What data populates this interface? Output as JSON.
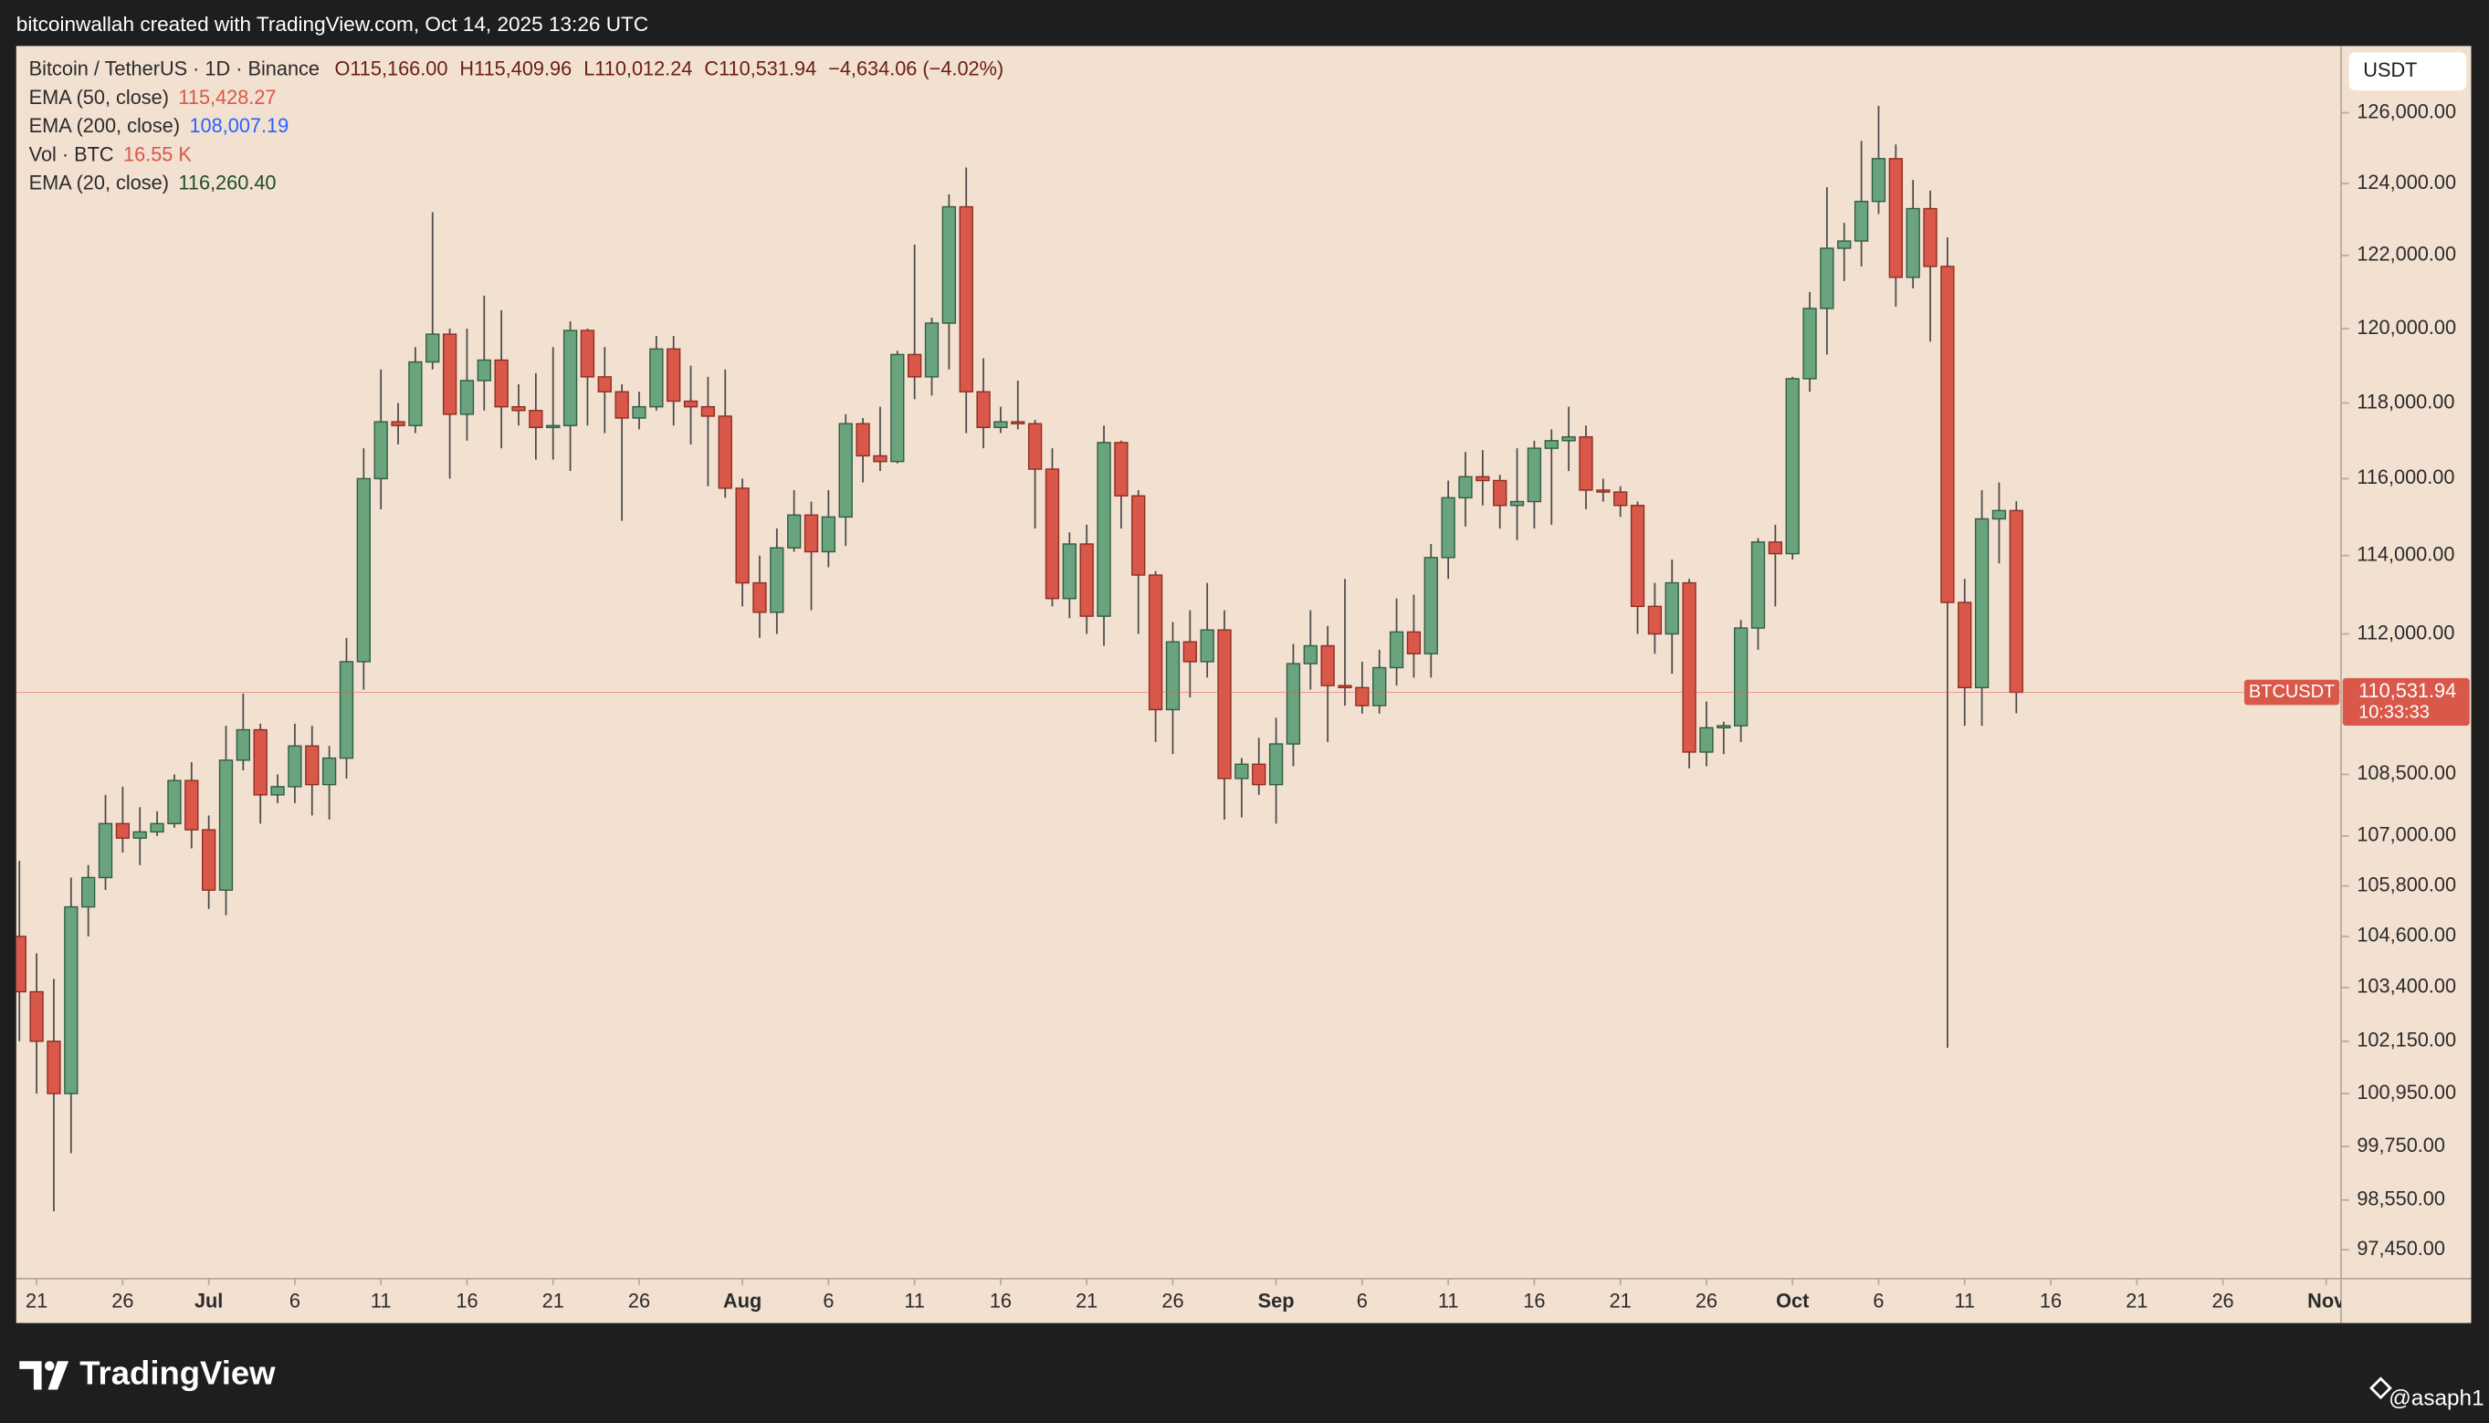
{
  "header": {
    "caption": "bitcoinwallah created with TradingView.com, Oct 14, 2025 13:26 UTC"
  },
  "chart_data": {
    "type": "candlestick",
    "symbol_line": "Bitcoin / TetherUS · 1D · Binance",
    "ohlc_labels": [
      "O115,166.00",
      "H115,409.96",
      "L110,012.24",
      "C110,531.94"
    ],
    "change_label": "−4,634.06 (−4.02%)",
    "indicators": [
      {
        "name": "EMA (50, close)",
        "value_label": "115,428.27",
        "color": "#d9584a"
      },
      {
        "name": "EMA (200, close)",
        "value_label": "108,007.19",
        "color": "#2962ff"
      },
      {
        "name": "Vol · BTC",
        "value_label": "16.55 K",
        "color": "#d9584a"
      },
      {
        "name": "EMA (20, close)",
        "value_label": "116,260.40",
        "color": "#1e4d2b"
      }
    ],
    "x": [
      "2025-06-20",
      "2025-06-21",
      "2025-06-22",
      "2025-06-23",
      "2025-06-24",
      "2025-06-25",
      "2025-06-26",
      "2025-06-27",
      "2025-06-28",
      "2025-06-29",
      "2025-06-30",
      "2025-07-01",
      "2025-07-02",
      "2025-07-03",
      "2025-07-04",
      "2025-07-05",
      "2025-07-06",
      "2025-07-07",
      "2025-07-08",
      "2025-07-09",
      "2025-07-10",
      "2025-07-11",
      "2025-07-12",
      "2025-07-13",
      "2025-07-14",
      "2025-07-15",
      "2025-07-16",
      "2025-07-17",
      "2025-07-18",
      "2025-07-19",
      "2025-07-20",
      "2025-07-21",
      "2025-07-22",
      "2025-07-23",
      "2025-07-24",
      "2025-07-25",
      "2025-07-26",
      "2025-07-27",
      "2025-07-28",
      "2025-07-29",
      "2025-07-30",
      "2025-07-31",
      "2025-08-01",
      "2025-08-02",
      "2025-08-03",
      "2025-08-04",
      "2025-08-05",
      "2025-08-06",
      "2025-08-07",
      "2025-08-08",
      "2025-08-09",
      "2025-08-10",
      "2025-08-11",
      "2025-08-12",
      "2025-08-13",
      "2025-08-14",
      "2025-08-15",
      "2025-08-16",
      "2025-08-17",
      "2025-08-18",
      "2025-08-19",
      "2025-08-20",
      "2025-08-21",
      "2025-08-22",
      "2025-08-23",
      "2025-08-24",
      "2025-08-25",
      "2025-08-26",
      "2025-08-27",
      "2025-08-28",
      "2025-08-29",
      "2025-08-30",
      "2025-08-31",
      "2025-09-01",
      "2025-09-02",
      "2025-09-03",
      "2025-09-04",
      "2025-09-05",
      "2025-09-06",
      "2025-09-07",
      "2025-09-08",
      "2025-09-09",
      "2025-09-10",
      "2025-09-11",
      "2025-09-12",
      "2025-09-13",
      "2025-09-14",
      "2025-09-15",
      "2025-09-16",
      "2025-09-17",
      "2025-09-18",
      "2025-09-19",
      "2025-09-20",
      "2025-09-21",
      "2025-09-22",
      "2025-09-23",
      "2025-09-24",
      "2025-09-25",
      "2025-09-26",
      "2025-09-27",
      "2025-09-28",
      "2025-09-29",
      "2025-09-30",
      "2025-10-01",
      "2025-10-02",
      "2025-10-03",
      "2025-10-04",
      "2025-10-05",
      "2025-10-06",
      "2025-10-07",
      "2025-10-08",
      "2025-10-09",
      "2025-10-10",
      "2025-10-11",
      "2025-10-12",
      "2025-10-13",
      "2025-10-14"
    ],
    "open": [
      104600,
      103300,
      102150,
      100950,
      105300,
      106000,
      107300,
      106950,
      107100,
      107300,
      108350,
      107150,
      105700,
      108850,
      109600,
      108000,
      108200,
      109200,
      108250,
      108900,
      111300,
      116000,
      117500,
      117400,
      119100,
      119850,
      117700,
      118600,
      119150,
      117900,
      117800,
      117350,
      117400,
      119950,
      118700,
      118300,
      117600,
      117900,
      119450,
      118050,
      117900,
      117650,
      115750,
      113300,
      112550,
      114200,
      115050,
      114100,
      115000,
      117450,
      116600,
      116450,
      119300,
      118700,
      120150,
      123350,
      118300,
      117350,
      117500,
      117450,
      116250,
      112900,
      114300,
      112450,
      116950,
      115550,
      113500,
      110100,
      111800,
      111300,
      112100,
      108400,
      108750,
      108250,
      109250,
      111250,
      111700,
      110700,
      110650,
      110200,
      111150,
      112050,
      111500,
      113950,
      115500,
      116050,
      115950,
      115300,
      115400,
      116800,
      117000,
      117100,
      115700,
      115650,
      115300,
      112700,
      112000,
      113300,
      109050,
      109650,
      109700,
      112150,
      114350,
      114050,
      118650,
      120550,
      122200,
      122400,
      123500,
      124700,
      121400,
      123300,
      121700,
      112800,
      110650,
      114950,
      115166
    ],
    "high": [
      106400,
      104200,
      103600,
      106000,
      106300,
      108000,
      108200,
      107700,
      107600,
      108500,
      108800,
      107500,
      109700,
      110500,
      109750,
      108500,
      109750,
      109700,
      109200,
      111900,
      116800,
      118900,
      118000,
      119500,
      123200,
      120000,
      120000,
      120900,
      120500,
      118500,
      118800,
      119500,
      120200,
      120000,
      119500,
      118500,
      118300,
      119800,
      119800,
      119000,
      118700,
      118900,
      116000,
      114000,
      114700,
      115700,
      115400,
      115700,
      117700,
      117600,
      117900,
      119400,
      122300,
      120300,
      123700,
      124450,
      119200,
      117900,
      118600,
      117550,
      116800,
      114600,
      114800,
      117400,
      117000,
      115700,
      113600,
      112300,
      112600,
      113300,
      112600,
      108900,
      109400,
      109900,
      111750,
      112600,
      112200,
      113400,
      111300,
      111600,
      112900,
      113000,
      114300,
      115950,
      116700,
      116750,
      116100,
      116800,
      117000,
      117300,
      117900,
      117400,
      116000,
      115800,
      115400,
      113300,
      113900,
      113400,
      110300,
      109800,
      112350,
      114450,
      114800,
      118700,
      121000,
      123900,
      122900,
      125200,
      126200,
      125100,
      124100,
      123800,
      122500,
      113400,
      115700,
      115900,
      115409.96
    ],
    "low": [
      102150,
      100950,
      98300,
      99600,
      104600,
      105700,
      106600,
      106300,
      107000,
      107200,
      106700,
      105250,
      105100,
      108600,
      107300,
      107800,
      107800,
      107500,
      107400,
      108400,
      110600,
      115200,
      116900,
      117200,
      118900,
      116000,
      117000,
      117800,
      116800,
      117400,
      116500,
      116500,
      116200,
      117400,
      117200,
      114900,
      117300,
      117800,
      117400,
      116900,
      115800,
      115500,
      112700,
      111900,
      112000,
      114100,
      112600,
      113700,
      114250,
      115900,
      116200,
      116400,
      118100,
      118200,
      118900,
      117200,
      116800,
      117200,
      117300,
      114700,
      112700,
      112400,
      112000,
      111700,
      114700,
      112000,
      109300,
      109000,
      110400,
      110900,
      107400,
      107450,
      108000,
      107300,
      108700,
      110600,
      109300,
      110200,
      110000,
      110000,
      110700,
      110900,
      110900,
      113400,
      114750,
      115300,
      114700,
      114400,
      114700,
      114800,
      116200,
      115200,
      115400,
      115000,
      112000,
      111500,
      111000,
      108650,
      108700,
      109000,
      109300,
      111600,
      112700,
      113900,
      118300,
      119300,
      121300,
      121700,
      123150,
      120600,
      121100,
      119650,
      102000,
      109700,
      109700,
      113800,
      110012.24
    ],
    "close": [
      103300,
      102150,
      100950,
      105300,
      106000,
      107300,
      106950,
      107100,
      107300,
      108350,
      107150,
      105700,
      108850,
      109600,
      108000,
      108200,
      109200,
      108250,
      108900,
      111300,
      116000,
      117500,
      117400,
      119100,
      119850,
      117700,
      118600,
      119150,
      117900,
      117800,
      117350,
      117400,
      119950,
      118700,
      118300,
      117600,
      117900,
      119450,
      118050,
      117900,
      117650,
      115750,
      113300,
      112550,
      114200,
      115050,
      114100,
      115000,
      117450,
      116600,
      116450,
      119300,
      118700,
      120150,
      123350,
      118300,
      117350,
      117500,
      117450,
      116250,
      112900,
      114300,
      112450,
      116950,
      115550,
      113500,
      110100,
      111800,
      111300,
      112100,
      108400,
      108750,
      108250,
      109250,
      111250,
      111700,
      110700,
      110650,
      110200,
      111150,
      112050,
      111500,
      113950,
      115500,
      116050,
      115950,
      115300,
      115400,
      116800,
      117000,
      117100,
      115700,
      115650,
      115300,
      112700,
      112000,
      113300,
      109050,
      109650,
      109700,
      112150,
      114350,
      114050,
      118650,
      120550,
      122200,
      122400,
      123500,
      124700,
      121400,
      123300,
      121700,
      112800,
      110650,
      114950,
      115166,
      110531.94
    ],
    "up_color": "#6aa47f",
    "down_color": "#d9584a",
    "wick_color": "#4a4a4a",
    "log": true,
    "grid": false,
    "xlim": [
      "2025-06-20",
      "2025-11-03"
    ],
    "xticks": [
      {
        "value": "2025-06-21",
        "label": "21"
      },
      {
        "value": "2025-06-26",
        "label": "26"
      },
      {
        "value": "2025-07-01",
        "label": "Jul"
      },
      {
        "value": "2025-07-06",
        "label": "6"
      },
      {
        "value": "2025-07-11",
        "label": "11"
      },
      {
        "value": "2025-07-16",
        "label": "16"
      },
      {
        "value": "2025-07-21",
        "label": "21"
      },
      {
        "value": "2025-07-26",
        "label": "26"
      },
      {
        "value": "2025-08-01",
        "label": "Aug"
      },
      {
        "value": "2025-08-06",
        "label": "6"
      },
      {
        "value": "2025-08-11",
        "label": "11"
      },
      {
        "value": "2025-08-16",
        "label": "16"
      },
      {
        "value": "2025-08-21",
        "label": "21"
      },
      {
        "value": "2025-08-26",
        "label": "26"
      },
      {
        "value": "2025-09-01",
        "label": "Sep"
      },
      {
        "value": "2025-09-06",
        "label": "6"
      },
      {
        "value": "2025-09-11",
        "label": "11"
      },
      {
        "value": "2025-09-16",
        "label": "16"
      },
      {
        "value": "2025-09-21",
        "label": "21"
      },
      {
        "value": "2025-09-26",
        "label": "26"
      },
      {
        "value": "2025-10-01",
        "label": "Oct"
      },
      {
        "value": "2025-10-06",
        "label": "6"
      },
      {
        "value": "2025-10-11",
        "label": "11"
      },
      {
        "value": "2025-10-16",
        "label": "16"
      },
      {
        "value": "2025-10-21",
        "label": "21"
      },
      {
        "value": "2025-10-26",
        "label": "26"
      },
      {
        "value": "2025-11-01",
        "label": "Nov"
      }
    ],
    "ylim": [
      96815,
      127915
    ],
    "yticks": [
      {
        "value": 126000,
        "label": "126,000.00"
      },
      {
        "value": 124000,
        "label": "124,000.00"
      },
      {
        "value": 122000,
        "label": "122,000.00"
      },
      {
        "value": 120000,
        "label": "120,000.00"
      },
      {
        "value": 118000,
        "label": "118,000.00"
      },
      {
        "value": 116000,
        "label": "116,000.00"
      },
      {
        "value": 114000,
        "label": "114,000.00"
      },
      {
        "value": 112000,
        "label": "112,000.00"
      },
      {
        "value": 108500,
        "label": "108,500.00"
      },
      {
        "value": 107000,
        "label": "107,000.00"
      },
      {
        "value": 105800,
        "label": "105,800.00"
      },
      {
        "value": 104600,
        "label": "104,600.00"
      },
      {
        "value": 103400,
        "label": "103,400.00"
      },
      {
        "value": 102150,
        "label": "102,150.00"
      },
      {
        "value": 100950,
        "label": "100,950.00"
      },
      {
        "value": 99750,
        "label": "99,750.00"
      },
      {
        "value": 98550,
        "label": "98,550.00"
      },
      {
        "value": 97450,
        "label": "97,450.00"
      }
    ],
    "currency": "USDT",
    "price_tag": {
      "symbol": "BTCUSDT",
      "label": "110,531.94",
      "countdown": "10:33:33"
    }
  },
  "footer": {
    "brand": "TradingView",
    "watermark": "@asaph1"
  }
}
